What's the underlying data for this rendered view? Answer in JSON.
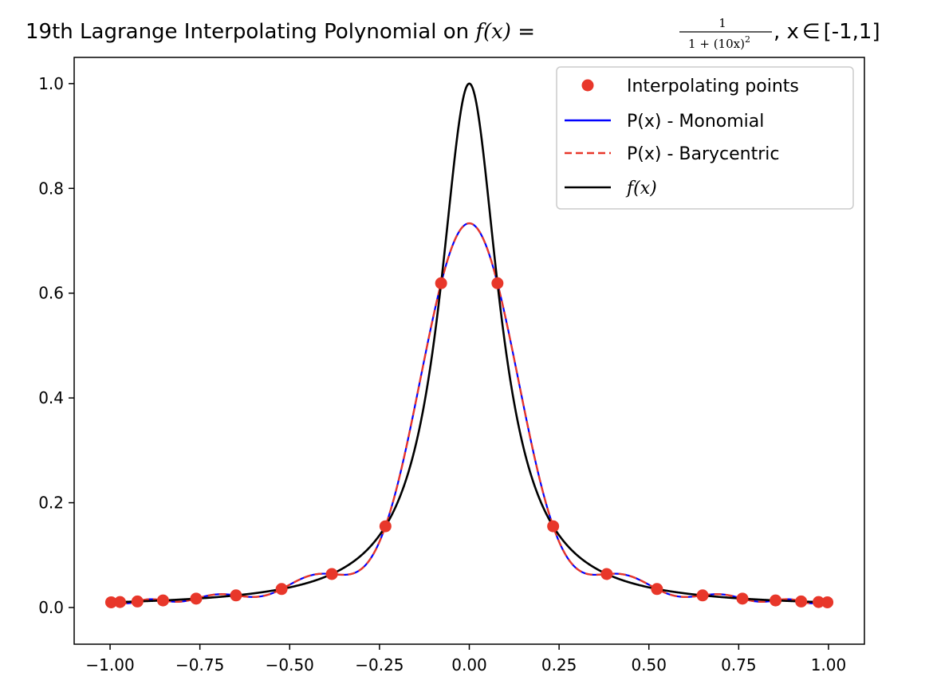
{
  "chart_data": {
    "type": "line",
    "title": {
      "prefix": "19th Lagrange Interpolating Polynomial on ",
      "fx": "f(x)",
      "eq": " = ",
      "numerator": "1",
      "denominator": "1 + (10x)",
      "denominator_exp": "2",
      "suffix": ", x",
      "elem": "∈",
      "interval": "[-1,1]"
    },
    "xlabel": "",
    "ylabel": "",
    "xlim": [
      -1.1,
      1.1
    ],
    "ylim": [
      -0.07,
      1.05
    ],
    "x_ticks": [
      -1.0,
      -0.75,
      -0.5,
      -0.25,
      0.0,
      0.25,
      0.5,
      0.75,
      1.0
    ],
    "x_tick_labels": [
      "−1.00",
      "−0.75",
      "−0.50",
      "−0.25",
      "0.00",
      "0.25",
      "0.50",
      "0.75",
      "1.00"
    ],
    "y_ticks": [
      0.0,
      0.2,
      0.4,
      0.6,
      0.8,
      1.0
    ],
    "y_tick_labels": [
      "0.0",
      "0.2",
      "0.4",
      "0.6",
      "0.8",
      "1.0"
    ],
    "grid": false,
    "legend_position": "top-right",
    "function": "1/(1+(10x)^2)",
    "interpolation_nodes": "chebyshev",
    "num_points": 20,
    "series": [
      {
        "name": "Interpolating points",
        "kind": "markers",
        "color": "#e8372a"
      },
      {
        "name": "P(x) - Monomial",
        "kind": "line",
        "color": "#0000ff",
        "dash": "solid"
      },
      {
        "name": "P(x) - Barycentric",
        "kind": "line",
        "color": "#e8372a",
        "dash": "dashed"
      },
      {
        "name": "f(x)",
        "kind": "line",
        "color": "#000000",
        "dash": "solid",
        "math_label": true
      }
    ]
  }
}
